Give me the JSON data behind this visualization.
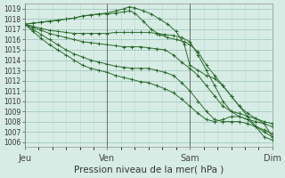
{
  "xlabel": "Pression niveau de la mer( hPa )",
  "bg_color": "#d8ece6",
  "plot_bg_color": "#d8ece6",
  "grid_major_color": "#a0c8bc",
  "grid_minor_color": "#b8d8d0",
  "line_color": "#2a6b2a",
  "xlim": [
    0,
    90
  ],
  "ylim": [
    1005.5,
    1019.5
  ],
  "yticks": [
    1006,
    1007,
    1008,
    1009,
    1010,
    1011,
    1012,
    1013,
    1014,
    1015,
    1016,
    1017,
    1018,
    1019
  ],
  "xtick_positions": [
    0,
    30,
    60,
    90
  ],
  "xtick_labels": [
    "Jeu",
    "Ven",
    "Sam",
    "Dim"
  ],
  "series": [
    {
      "x": [
        0,
        3,
        6,
        9,
        12,
        15,
        18,
        21,
        24,
        27,
        30,
        33,
        36,
        38,
        40,
        43,
        46,
        49,
        52,
        55,
        58,
        60,
        63,
        66,
        69,
        72,
        75,
        78,
        81,
        84,
        87,
        90
      ],
      "y": [
        1017.5,
        1017.6,
        1017.7,
        1017.8,
        1017.9,
        1018.0,
        1018.1,
        1018.3,
        1018.4,
        1018.5,
        1018.6,
        1018.8,
        1019.0,
        1019.2,
        1019.1,
        1018.8,
        1018.5,
        1018.0,
        1017.5,
        1016.8,
        1015.5,
        1013.5,
        1013.0,
        1012.5,
        1012.2,
        1011.5,
        1010.5,
        1009.5,
        1008.5,
        1007.5,
        1006.5,
        1006.2
      ]
    },
    {
      "x": [
        0,
        3,
        6,
        9,
        12,
        15,
        18,
        21,
        24,
        27,
        30,
        33,
        36,
        38,
        40,
        43,
        46,
        49,
        52,
        55,
        58,
        60,
        63,
        66,
        69,
        72,
        75,
        78,
        81,
        84,
        87,
        90
      ],
      "y": [
        1017.5,
        1017.6,
        1017.7,
        1017.8,
        1017.9,
        1018.0,
        1018.1,
        1018.3,
        1018.4,
        1018.5,
        1018.5,
        1018.6,
        1018.7,
        1018.8,
        1018.6,
        1017.8,
        1017.0,
        1016.5,
        1016.2,
        1016.0,
        1015.8,
        1015.5,
        1014.8,
        1013.5,
        1012.5,
        1011.5,
        1010.5,
        1009.5,
        1008.8,
        1008.3,
        1007.8,
        1006.5
      ]
    },
    {
      "x": [
        0,
        3,
        6,
        9,
        12,
        15,
        18,
        21,
        24,
        27,
        30,
        33,
        36,
        39,
        42,
        45,
        48,
        51,
        54,
        57,
        60,
        63,
        66,
        69,
        72,
        75,
        78,
        81,
        84,
        87,
        90
      ],
      "y": [
        1017.5,
        1017.3,
        1017.1,
        1016.9,
        1016.8,
        1016.7,
        1016.6,
        1016.6,
        1016.6,
        1016.6,
        1016.6,
        1016.7,
        1016.7,
        1016.7,
        1016.7,
        1016.7,
        1016.6,
        1016.5,
        1016.4,
        1016.2,
        1015.8,
        1014.5,
        1013.0,
        1011.5,
        1010.0,
        1009.0,
        1008.5,
        1008.2,
        1008.0,
        1007.8,
        1007.5
      ]
    },
    {
      "x": [
        0,
        3,
        6,
        9,
        12,
        15,
        18,
        21,
        24,
        27,
        30,
        33,
        36,
        39,
        42,
        45,
        48,
        51,
        54,
        57,
        60,
        63,
        66,
        69,
        72,
        75,
        78,
        81,
        84,
        87,
        90
      ],
      "y": [
        1017.5,
        1017.2,
        1016.9,
        1016.6,
        1016.4,
        1016.2,
        1016.0,
        1015.8,
        1015.7,
        1015.6,
        1015.5,
        1015.4,
        1015.3,
        1015.3,
        1015.3,
        1015.2,
        1015.1,
        1015.0,
        1014.5,
        1013.8,
        1013.2,
        1012.5,
        1011.5,
        1010.5,
        1009.5,
        1009.0,
        1008.8,
        1008.5,
        1008.3,
        1008.0,
        1007.8
      ]
    },
    {
      "x": [
        0,
        3,
        6,
        9,
        12,
        15,
        18,
        21,
        24,
        27,
        30,
        33,
        36,
        39,
        42,
        45,
        48,
        51,
        54,
        57,
        60,
        63,
        66,
        69,
        72,
        75,
        78,
        81,
        84,
        87,
        90
      ],
      "y": [
        1017.5,
        1017.0,
        1016.5,
        1016.0,
        1015.5,
        1015.0,
        1014.6,
        1014.3,
        1014.0,
        1013.8,
        1013.6,
        1013.4,
        1013.3,
        1013.2,
        1013.2,
        1013.2,
        1013.0,
        1012.8,
        1012.5,
        1011.8,
        1011.0,
        1010.0,
        1009.0,
        1008.2,
        1008.0,
        1008.0,
        1008.0,
        1007.8,
        1007.5,
        1007.2,
        1006.8
      ]
    },
    {
      "x": [
        0,
        3,
        6,
        9,
        12,
        15,
        18,
        21,
        24,
        27,
        30,
        33,
        36,
        39,
        42,
        45,
        48,
        51,
        54,
        57,
        60,
        63,
        66,
        69,
        72,
        75,
        78,
        81,
        84,
        87,
        90
      ],
      "y": [
        1017.5,
        1016.8,
        1016.1,
        1015.5,
        1015.0,
        1014.5,
        1014.0,
        1013.5,
        1013.2,
        1013.0,
        1012.8,
        1012.5,
        1012.3,
        1012.1,
        1011.9,
        1011.8,
        1011.5,
        1011.2,
        1010.8,
        1010.2,
        1009.5,
        1008.8,
        1008.2,
        1008.0,
        1008.2,
        1008.5,
        1008.5,
        1008.2,
        1007.5,
        1007.0,
        1006.5
      ]
    }
  ]
}
